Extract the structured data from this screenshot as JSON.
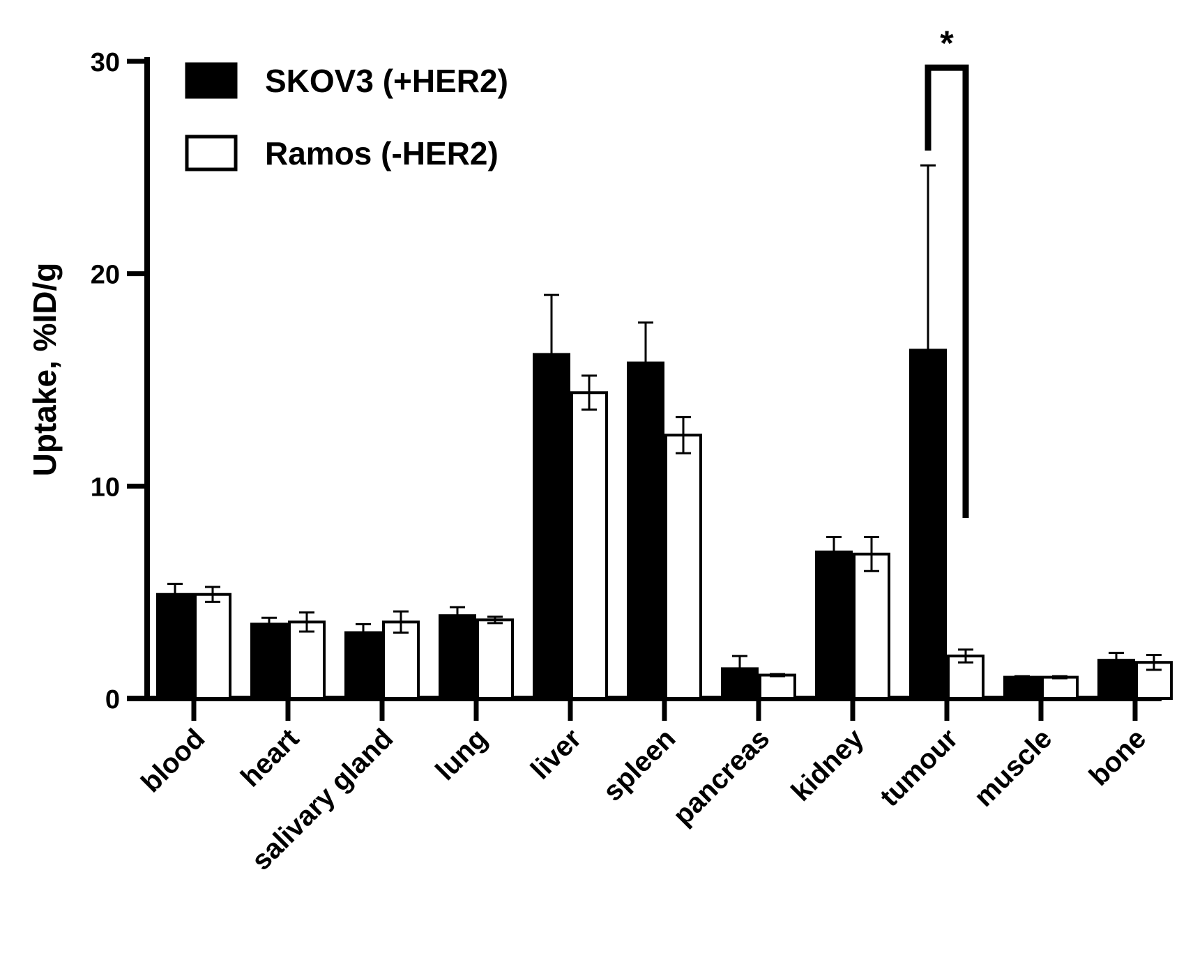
{
  "chart_data": {
    "type": "bar",
    "title": "",
    "xlabel": "",
    "ylabel": "Uptake,  %ID/g",
    "ylim": [
      0,
      30
    ],
    "yticks": [
      0,
      10,
      20,
      30
    ],
    "categories": [
      "blood",
      "heart",
      "salivary gland",
      "lung",
      "liver",
      "spleen",
      "pancreas",
      "kidney",
      "tumour",
      "muscle",
      "bone"
    ],
    "series": [
      {
        "name": "SKOV3 (+HER2)",
        "fill": "#000000",
        "values": [
          4.9,
          3.5,
          3.1,
          3.9,
          16.2,
          15.8,
          1.4,
          6.9,
          16.4,
          1.0,
          1.8
        ],
        "errors": [
          0.5,
          0.3,
          0.4,
          0.4,
          2.8,
          1.9,
          0.6,
          0.7,
          8.7,
          0.05,
          0.35
        ]
      },
      {
        "name": "Ramos (-HER2)",
        "fill": "#ffffff",
        "values": [
          4.9,
          3.6,
          3.6,
          3.7,
          14.4,
          12.4,
          1.1,
          6.8,
          2.0,
          1.0,
          1.7
        ],
        "errors": [
          0.35,
          0.45,
          0.5,
          0.15,
          0.8,
          0.85,
          0.05,
          0.8,
          0.3,
          0.05,
          0.35
        ]
      }
    ],
    "legend": "top-left",
    "grid": false,
    "annotations": [
      {
        "text": "*",
        "category": "tumour",
        "left_y": 25.8,
        "right_y": 8.5,
        "top_y": 29.7
      }
    ]
  }
}
